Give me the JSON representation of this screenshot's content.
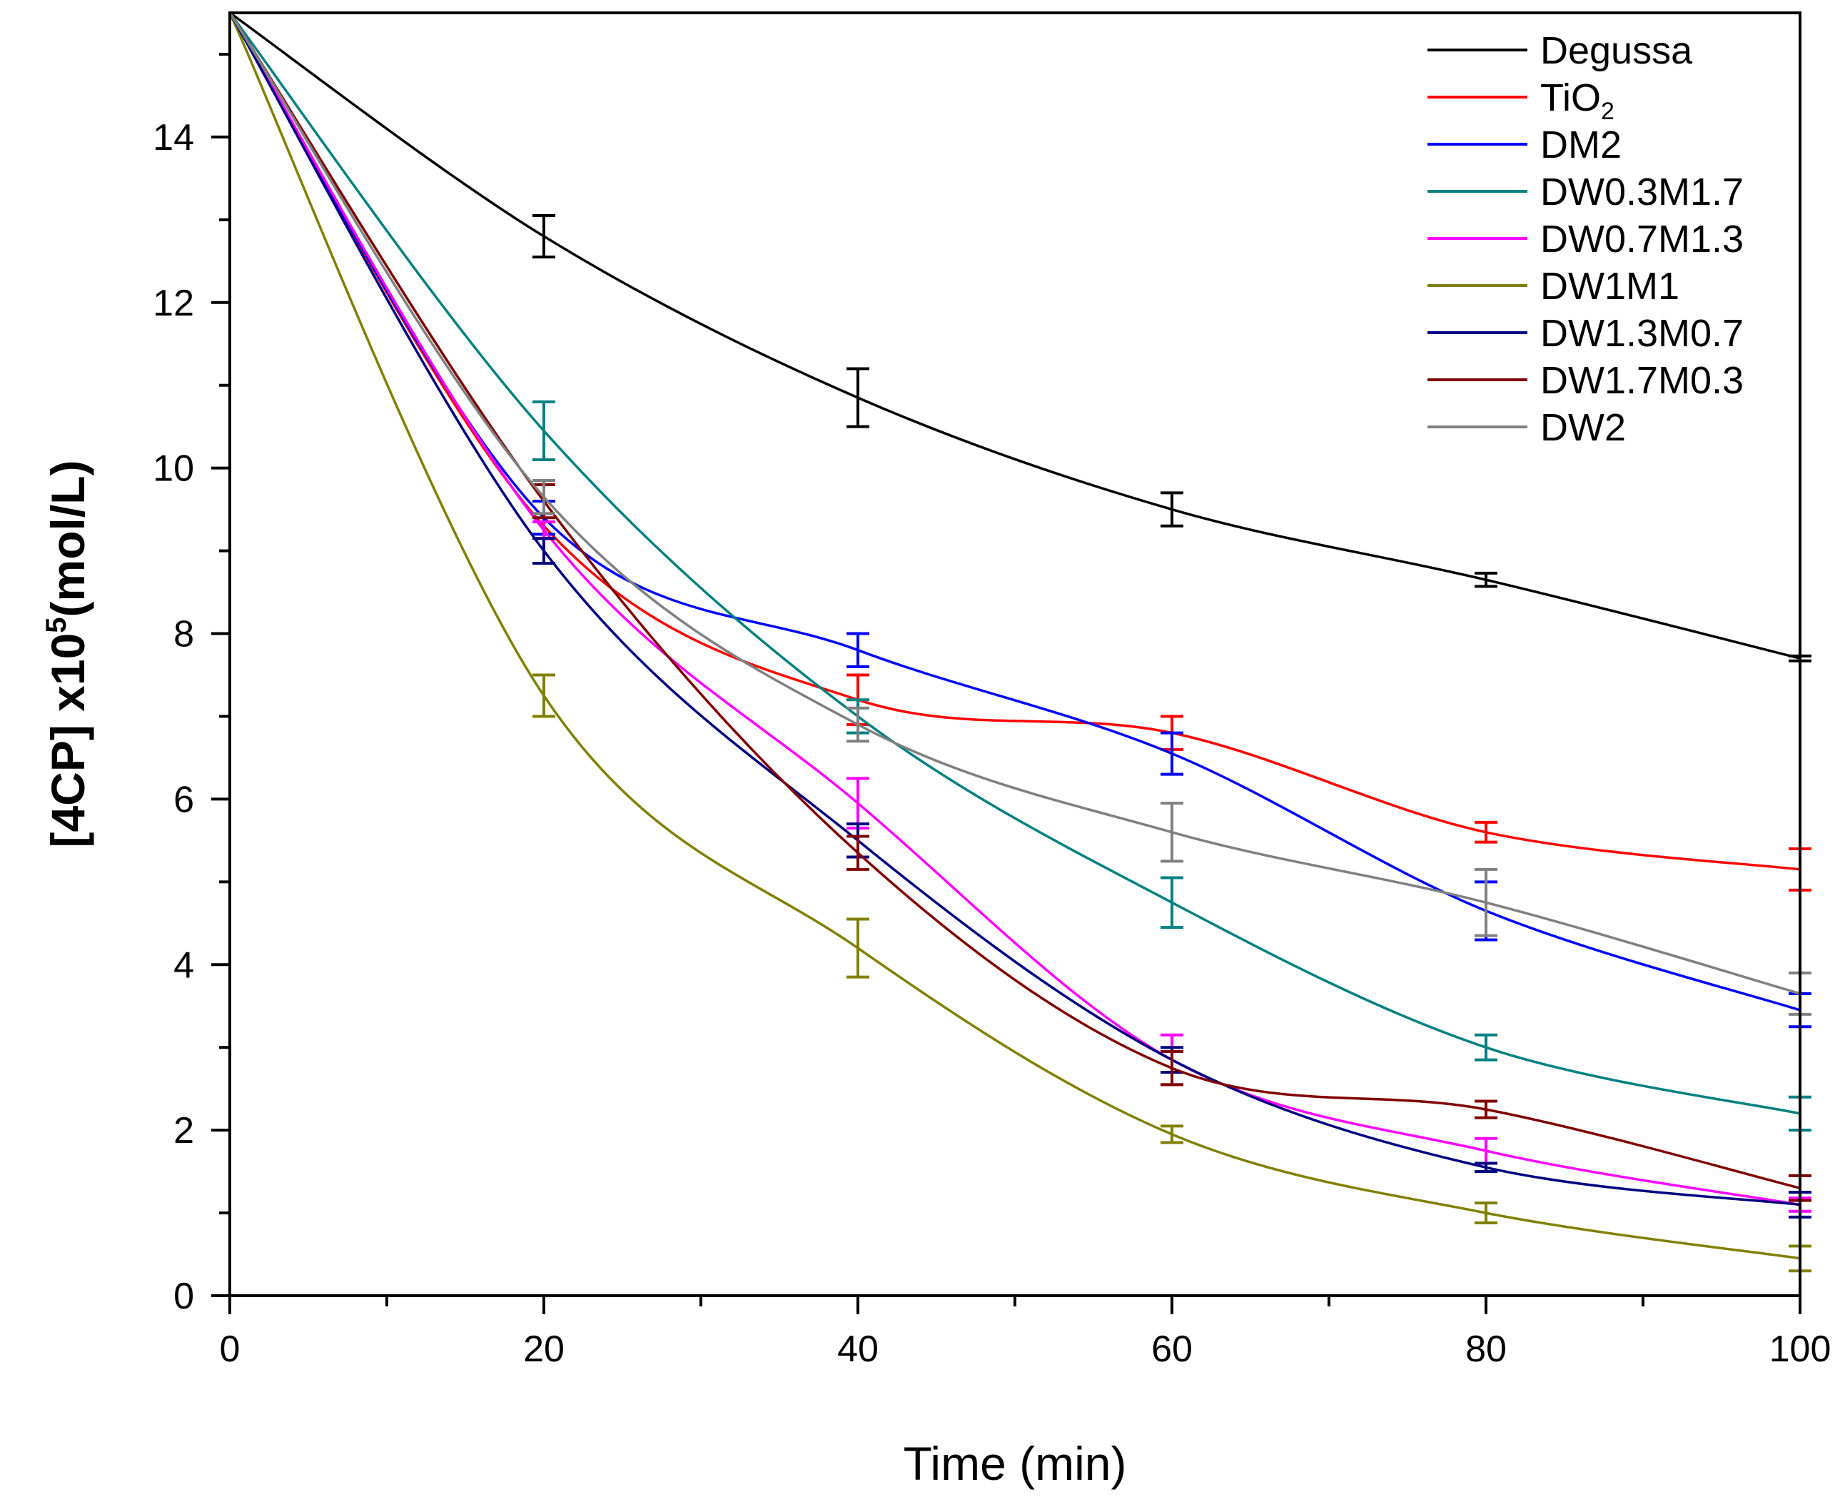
{
  "chart_data": {
    "type": "line",
    "title": "",
    "xlabel": "Time (min)",
    "ylabel_parts": {
      "main": "[4CP] x10",
      "exp": "5",
      "tail": "(mol/L)"
    },
    "xlim": [
      0,
      100
    ],
    "ylim": [
      0,
      15.5
    ],
    "x_ticks": [
      0,
      20,
      40,
      60,
      80,
      100
    ],
    "x_tick_labels": [
      "0",
      "20",
      "40",
      "60",
      "80",
      "100"
    ],
    "x_minor_ticks": [
      10,
      30,
      50,
      70,
      90
    ],
    "y_ticks": [
      0,
      2,
      4,
      6,
      8,
      10,
      12,
      14
    ],
    "y_tick_labels": [
      "0",
      "2",
      "4",
      "6",
      "8",
      "10",
      "12",
      "14"
    ],
    "grid": false,
    "legend_position": "top-right",
    "x": [
      0,
      20,
      40,
      60,
      80,
      100
    ],
    "series": [
      {
        "name": "Degussa",
        "label_main": "Degussa",
        "label_sub": "",
        "color": "#000000",
        "values": [
          15.5,
          12.8,
          10.85,
          9.5,
          8.65,
          7.7
        ],
        "errors": [
          0,
          0.25,
          0.35,
          0.2,
          0.08,
          0.03
        ]
      },
      {
        "name": "TiO2",
        "label_main": "TiO",
        "label_sub": "2",
        "color": "#ff0000",
        "values": [
          15.5,
          9.3,
          7.2,
          6.8,
          5.6,
          5.15
        ],
        "errors": [
          0,
          0.15,
          0.3,
          0.2,
          0.12,
          0.25
        ]
      },
      {
        "name": "DM2",
        "label_main": "DM2",
        "label_sub": "",
        "color": "#0000ff",
        "values": [
          15.5,
          9.4,
          7.8,
          6.55,
          4.65,
          3.45
        ],
        "errors": [
          0,
          0.2,
          0.2,
          0.25,
          0.35,
          0.2
        ]
      },
      {
        "name": "DW0.3M1.7",
        "label_main": "DW0.3M1.7",
        "label_sub": "",
        "color": "#008080",
        "values": [
          15.5,
          10.45,
          7.0,
          4.75,
          3.0,
          2.2
        ],
        "errors": [
          0,
          0.35,
          0.2,
          0.3,
          0.15,
          0.2
        ]
      },
      {
        "name": "DW0.7M1.3",
        "label_main": "DW0.7M1.3",
        "label_sub": "",
        "color": "#ff00ff",
        "values": [
          15.5,
          9.25,
          5.95,
          2.85,
          1.75,
          1.1
        ],
        "errors": [
          0,
          0.1,
          0.3,
          0.3,
          0.15,
          0.08
        ]
      },
      {
        "name": "DW1M1",
        "label_main": "DW1M1",
        "label_sub": "",
        "color": "#808000",
        "values": [
          15.5,
          7.25,
          4.2,
          1.95,
          1.0,
          0.45
        ],
        "errors": [
          0,
          0.25,
          0.35,
          0.1,
          0.12,
          0.15
        ]
      },
      {
        "name": "DW1.3M0.7",
        "label_main": "DW1.3M0.7",
        "label_sub": "",
        "color": "#000080",
        "values": [
          15.5,
          9.0,
          5.5,
          2.85,
          1.55,
          1.1
        ],
        "errors": [
          0,
          0.15,
          0.2,
          0.15,
          0.05,
          0.15
        ]
      },
      {
        "name": "DW1.7M0.3",
        "label_main": "DW1.7M0.3",
        "label_sub": "",
        "color": "#800000",
        "values": [
          15.5,
          9.6,
          5.35,
          2.75,
          2.25,
          1.3
        ],
        "errors": [
          0,
          0.2,
          0.2,
          0.2,
          0.1,
          0.15
        ]
      },
      {
        "name": "DW2",
        "label_main": "DW2",
        "label_sub": "",
        "color": "#808080",
        "values": [
          15.5,
          9.65,
          6.9,
          5.6,
          4.75,
          3.65
        ],
        "errors": [
          0,
          0.2,
          0.2,
          0.35,
          0.4,
          0.25
        ]
      }
    ]
  }
}
